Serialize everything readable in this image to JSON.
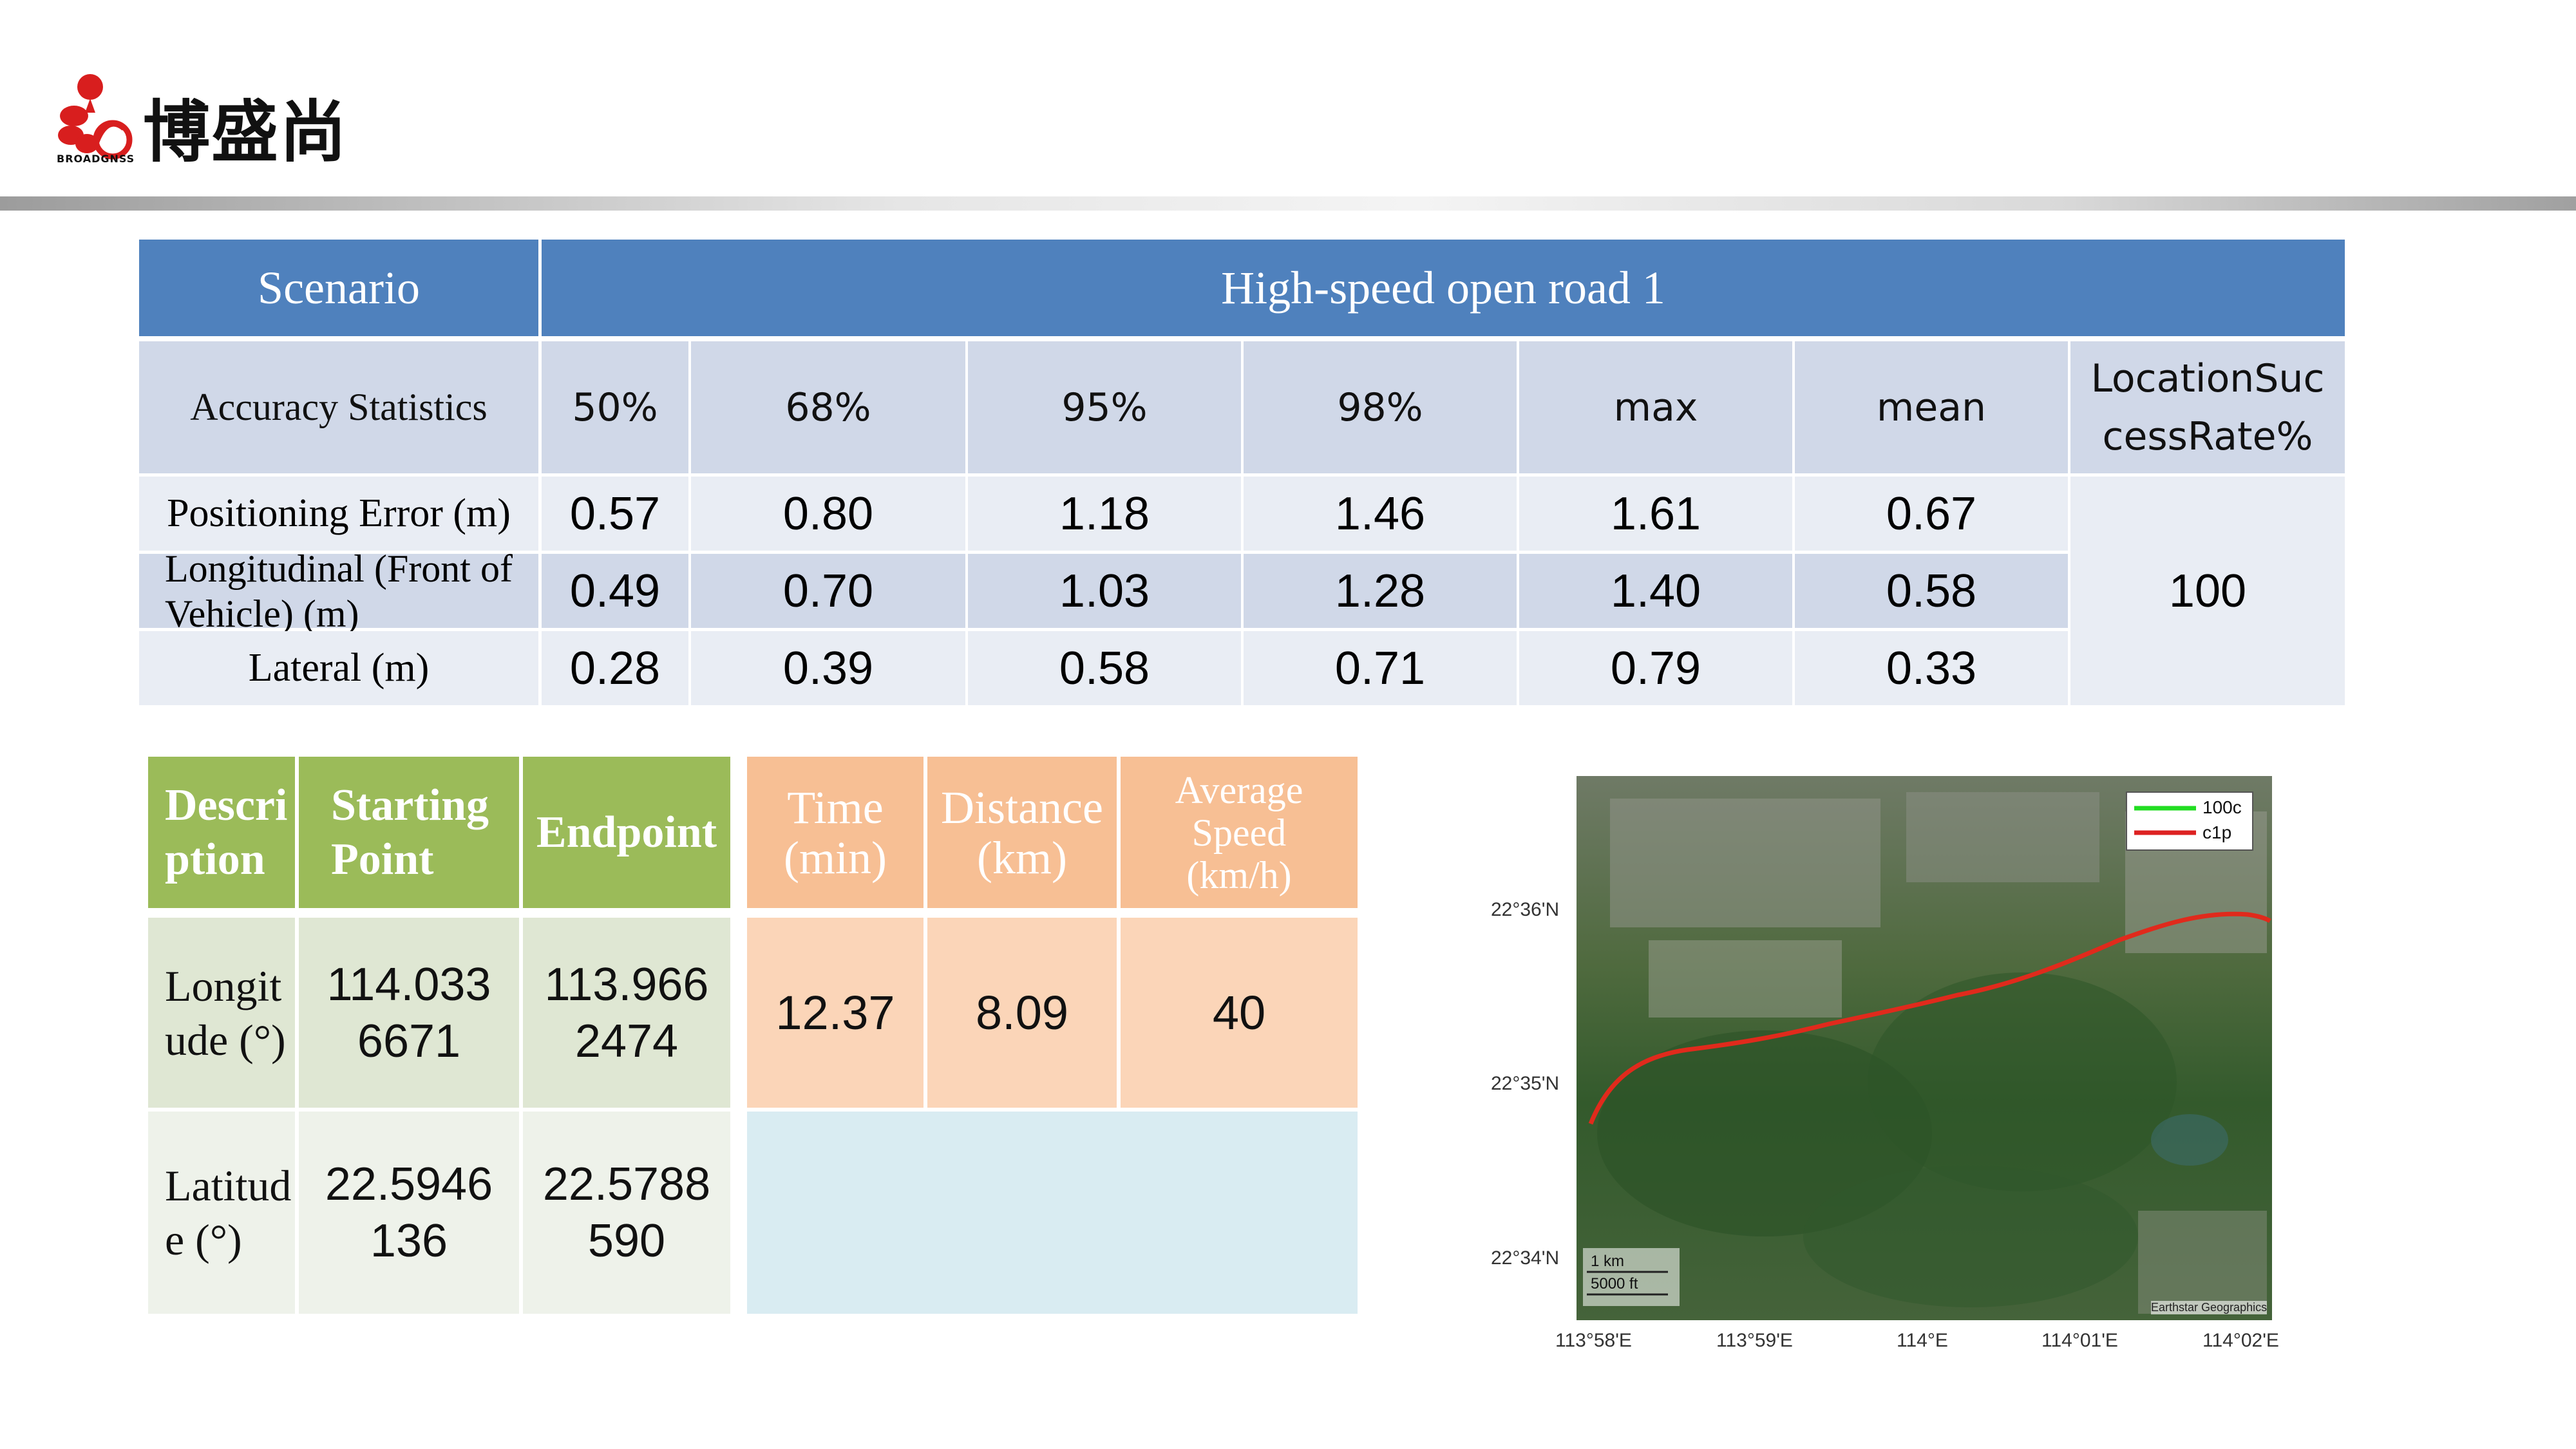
{
  "header": {
    "brand_name": "博盛尚",
    "brand_small": "BROADGNSS"
  },
  "accuracy_table": {
    "scenario_label": "Scenario",
    "scenario_value": "High-speed open road 1",
    "stats_label": "Accuracy Statistics",
    "columns": [
      "50%",
      "68%",
      "95%",
      "98%",
      "max",
      "mean",
      "LocationSuccessRate%"
    ],
    "rows": [
      {
        "label": "Positioning Error (m)",
        "values": [
          "0.57",
          "0.80",
          "1.18",
          "1.46",
          "1.61",
          "0.67"
        ]
      },
      {
        "label": "Longitudinal (Front of Vehicle) (m)",
        "values": [
          "0.49",
          "0.70",
          "1.03",
          "1.28",
          "1.40",
          "0.58"
        ]
      },
      {
        "label": "Lateral (m)",
        "values": [
          "0.28",
          "0.39",
          "0.58",
          "0.71",
          "0.79",
          "0.33"
        ]
      }
    ],
    "success_rate": "100"
  },
  "coords_table": {
    "headers": [
      "Description",
      "Starting Point",
      "Endpoint"
    ],
    "rows": [
      {
        "label": "Longitude (°)",
        "start": "114.0336671",
        "end": "113.9662474"
      },
      {
        "label": "Latitude (°)",
        "start": "22.5946136",
        "end": "22.5788590"
      }
    ]
  },
  "trip_table": {
    "headers": [
      "Time (min)",
      "Distance (km)",
      "Average Speed (km/h)"
    ],
    "values": [
      "12.37",
      "8.09",
      "40"
    ]
  },
  "map": {
    "legend": [
      "100c",
      "c1p"
    ],
    "legend_colors": [
      "#22dd22",
      "#dd2222"
    ],
    "y_ticks": [
      "22°36'N",
      "22°35'N",
      "22°34'N"
    ],
    "x_ticks": [
      "113°58'E",
      "113°59'E",
      "114°E",
      "114°01'E",
      "114°02'E"
    ],
    "scale_km": "1 km",
    "scale_ft": "5000 ft",
    "attribution": "Earthstar Geographics"
  }
}
